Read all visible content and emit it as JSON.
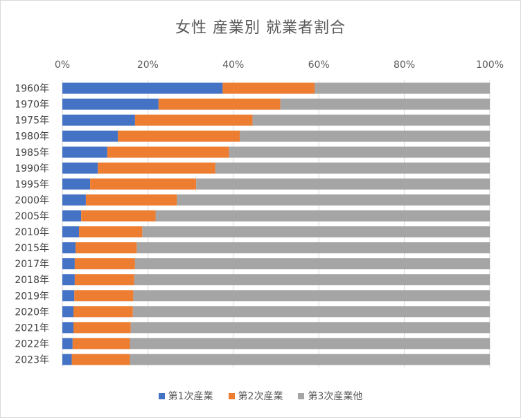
{
  "chart_data": {
    "type": "bar",
    "orientation": "horizontal",
    "stacked": "percent",
    "title": "女性 産業別 就業者割合",
    "categories": [
      "1960年",
      "1970年",
      "1975年",
      "1980年",
      "1985年",
      "1990年",
      "1995年",
      "2000年",
      "2005年",
      "2010年",
      "2015年",
      "2017年",
      "2018年",
      "2019年",
      "2020年",
      "2021年",
      "2022年",
      "2023年"
    ],
    "series": [
      {
        "name": "第1次産業",
        "color": "#4472C4",
        "values": [
          37.5,
          22.5,
          17.0,
          13.0,
          10.5,
          8.3,
          6.5,
          5.5,
          4.4,
          3.9,
          3.1,
          2.9,
          2.9,
          2.8,
          2.6,
          2.6,
          2.4,
          2.2
        ]
      },
      {
        "name": "第2次産業",
        "color": "#ED7D31",
        "values": [
          21.5,
          28.5,
          27.5,
          28.5,
          28.5,
          27.5,
          24.8,
          21.3,
          17.4,
          14.8,
          14.3,
          14.1,
          13.9,
          13.8,
          13.9,
          13.4,
          13.4,
          13.6
        ]
      },
      {
        "name": "第3次産業他",
        "color": "#A5A5A5",
        "values": [
          41.0,
          49.0,
          55.5,
          58.5,
          61.0,
          64.2,
          68.7,
          73.2,
          78.2,
          81.3,
          82.6,
          83.0,
          83.2,
          83.4,
          83.5,
          84.0,
          84.2,
          84.2
        ]
      }
    ],
    "xaxis": {
      "ticks": [
        "0%",
        "20%",
        "40%",
        "60%",
        "80%",
        "100%"
      ],
      "range": [
        0,
        100
      ],
      "position": "top"
    },
    "grid": true,
    "legend": "bottom"
  }
}
